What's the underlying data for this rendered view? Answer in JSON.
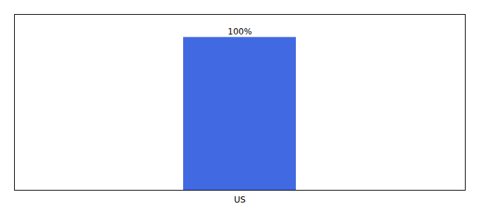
{
  "chart_data": {
    "type": "bar",
    "categories": [
      "US"
    ],
    "values": [
      100
    ],
    "value_labels": [
      "100%"
    ],
    "data_labels": true,
    "color": "#4169e1",
    "ylim": [
      0,
      115
    ],
    "tick_labels": "x"
  }
}
